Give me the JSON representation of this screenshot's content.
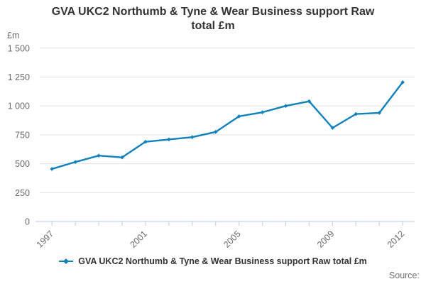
{
  "header": {
    "title": "GVA UKC2 Northumb & Tyne & Wear Business support Raw total £m",
    "title_lines": [
      "GVA UKC2 Northumb & Tyne & Wear Business support Raw",
      "total £m"
    ]
  },
  "legend": {
    "label": "GVA UKC2 Northumb & Tyne & Wear Business support Raw total £m",
    "marker": "line-with-diamond"
  },
  "footer": {
    "source_label": "Source:"
  },
  "colors": {
    "line": "#1181be",
    "title_text": "#333333",
    "axis_text": "#6b6b6b",
    "gridline": "#e2e2e2",
    "axis_line": "#c7d3e5",
    "legend_text": "#333333",
    "source_text": "#6e6e6e",
    "background": "#ffffff"
  },
  "chart_data": {
    "type": "line",
    "title": "GVA UKC2 Northumb & Tyne & Wear Business support Raw total £m",
    "x": [
      1997,
      1998,
      1999,
      2000,
      2001,
      2002,
      2003,
      2004,
      2005,
      2006,
      2007,
      2008,
      2009,
      2010,
      2011,
      2012
    ],
    "series": [
      {
        "name": "GVA UKC2 Northumb & Tyne & Wear Business support Raw total £m",
        "values": [
          455,
          515,
          570,
          555,
          690,
          710,
          730,
          775,
          910,
          945,
          1000,
          1040,
          810,
          930,
          940,
          1205
        ]
      }
    ],
    "xlabel": "",
    "ylabel": "£m",
    "ylim": [
      0,
      1500
    ],
    "y_ticks": [
      0,
      250,
      500,
      750,
      1000,
      1250,
      1500
    ],
    "y_tick_labels": [
      "0",
      "250",
      "500",
      "750",
      "1 000",
      "1 250",
      "1 500"
    ],
    "x_labeled_ticks": [
      "1997",
      "2001",
      "2005",
      "2009",
      "2012"
    ],
    "grid": true,
    "legend_position": "bottom",
    "marker": "diamond"
  }
}
